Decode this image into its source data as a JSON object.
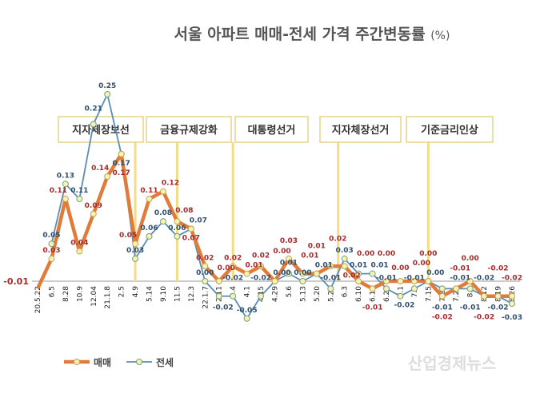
{
  "chart_data": {
    "type": "line",
    "title": "서울 아파트 매매-전세 가격 주간변동률",
    "title_unit": "(%)",
    "categories": [
      "20.5.22",
      "6.5",
      "8.28",
      "10.9",
      "12.04",
      "21.1.8",
      "2.5",
      "4.9",
      "5.14",
      "9.10",
      "11.5",
      "12.3",
      "22.1.7",
      "2.11",
      "3.4",
      "4.1",
      "4.15",
      "4.29",
      "5.6",
      "5.13",
      "5.20",
      "5.27",
      "6.3",
      "6.10",
      "6.17",
      "6.24",
      "7.1",
      "7.8",
      "7.15",
      "7.22",
      "7.29",
      "8.5",
      "8.12",
      "8.19",
      "8.26"
    ],
    "series": [
      {
        "name": "매매",
        "color": "#e07b39",
        "label_color": "#a52a2a",
        "values": [
          -0.01,
          0.03,
          0.11,
          0.04,
          0.09,
          0.14,
          0.17,
          0.05,
          0.11,
          0.12,
          0.08,
          0.07,
          0.02,
          0.0,
          0.02,
          0.01,
          0.02,
          0.0,
          0.03,
          0.01,
          0.01,
          0.02,
          0.02,
          0.0,
          -0.01,
          0.0,
          0.0,
          0.0,
          0.0,
          -0.02,
          -0.01,
          0.0,
          -0.02,
          -0.02,
          -0.02
        ]
      },
      {
        "name": "전세",
        "color": "#5b8db8",
        "label_color": "#2f4f6f",
        "values": [
          null,
          0.05,
          0.13,
          0.11,
          0.21,
          0.25,
          0.17,
          0.03,
          0.06,
          0.08,
          0.06,
          0.07,
          0.0,
          -0.02,
          -0.02,
          -0.05,
          -0.02,
          0.0,
          0.01,
          0.0,
          0.01,
          -0.01,
          0.03,
          0.01,
          0.01,
          -0.01,
          -0.02,
          -0.01,
          0.0,
          -0.01,
          -0.01,
          -0.01,
          -0.02,
          -0.02,
          -0.03
        ]
      }
    ],
    "ylim": [
      -0.06,
      0.27
    ],
    "grid": false,
    "legend": "bottom-left",
    "annotations": [
      {
        "text": "지자체장보선",
        "at": "4.9"
      },
      {
        "text": "금융규제강화",
        "at": "11.5"
      },
      {
        "text": "대통령선거",
        "at": "3.4"
      },
      {
        "text": "지자체장선거",
        "at": "6.3"
      },
      {
        "text": "기준금리인상",
        "at": "7.15"
      }
    ]
  },
  "watermark": "산업경제뉴스"
}
